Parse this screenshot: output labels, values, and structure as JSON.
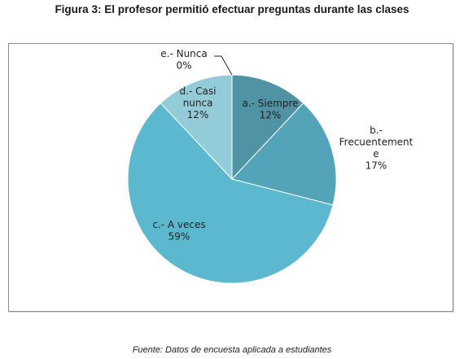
{
  "figure": {
    "title": "Figura 3: El profesor permitió efectuar preguntas durante las clases",
    "source": "Fuente: Datos de encuesta aplicada a estudiantes"
  },
  "chart_data": {
    "type": "pie",
    "title": "Figura 3: El profesor permitió efectuar preguntas durante las clases",
    "legend": "none",
    "slices": [
      {
        "key": "a",
        "label_lines": [
          "a.- Siempre",
          "12%"
        ],
        "percent_text": "12%",
        "value": 12,
        "color": "#4f93a4"
      },
      {
        "key": "b",
        "label_lines": [
          "b.-",
          "Frecuentement",
          "e",
          "17%"
        ],
        "percent_text": "17%",
        "value": 17,
        "color": "#54a4b9"
      },
      {
        "key": "c",
        "label_lines": [
          "c.- A veces",
          "59%"
        ],
        "percent_text": "59%",
        "value": 59,
        "color": "#5cb8cf"
      },
      {
        "key": "d",
        "label_lines": [
          "d.- Casi",
          "nunca",
          "12%"
        ],
        "percent_text": "12%",
        "value": 12,
        "color": "#93cbd9"
      },
      {
        "key": "e",
        "label_lines": [
          "e.- Nunca",
          "0%"
        ],
        "percent_text": "0%",
        "value": 0,
        "color": "#a8d6e2"
      }
    ]
  }
}
